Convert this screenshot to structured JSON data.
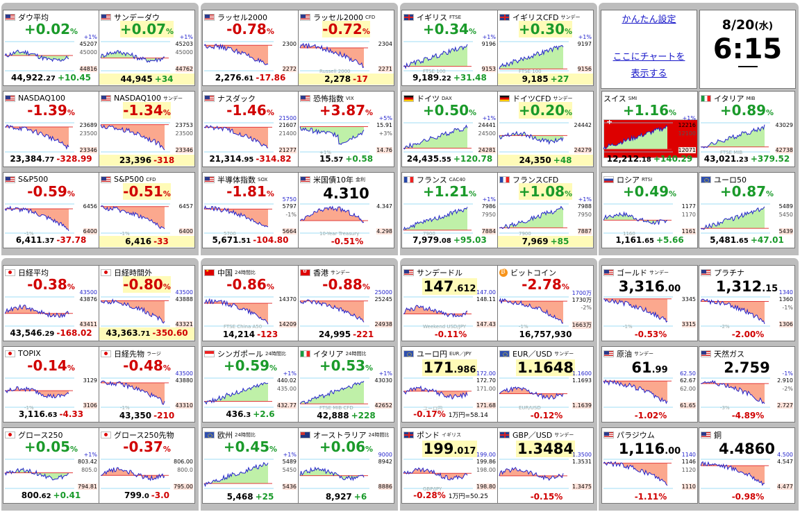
{
  "settings": {
    "easy_settings": "かんたん設定",
    "chart_link_1": "ここにチャートを",
    "chart_link_2": "表示する"
  },
  "clock": {
    "date": "8/20",
    "weekday": "(水)",
    "time": "6:15"
  },
  "colors": {
    "up": "#1a9a2a",
    "down": "#d00000",
    "fill_up": "#bff0a8",
    "fill_down": "#fba88e",
    "highlight": "#fffbb8",
    "line": "#2222cc"
  },
  "cards": [
    {
      "title": "ダウ平均",
      "flag": "us",
      "ch": "+0.02",
      "ch_unit": "%",
      "dir": "up",
      "hi": "45207",
      "lo": "44816",
      "p1": "+1%",
      "p2": "45000",
      "p3": "",
      "last": "44,922",
      "last_dec": ".27",
      "delta": "+10.45",
      "trend": "flat",
      "hl": false
    },
    {
      "title": "サンデーダウ",
      "flag": "us",
      "ch": "+0.07",
      "ch_unit": "%",
      "dir": "up",
      "hi": "45203",
      "lo": "44762",
      "p1": "+1%",
      "p2": "45000",
      "p3": "",
      "last": "44,945",
      "last_dec": "",
      "delta": "+34",
      "trend": "flat",
      "hl": true
    },
    {
      "title": "ラッセル2000",
      "flag": "us",
      "ch": "-0.78",
      "ch_unit": "%",
      "dir": "down",
      "hi": "2300",
      "lo": "2272",
      "p1": "",
      "p2": "",
      "p3": "",
      "last": "2,276",
      "last_dec": ".61",
      "delta": "-17.86",
      "trend": "down",
      "hl": false
    },
    {
      "title": "ラッセル2000",
      "sub": "CFD",
      "flag": "us",
      "ch": "-0.72",
      "ch_unit": "%",
      "dir": "down",
      "hi": "2304",
      "lo": "2271",
      "p1": "",
      "p2": "",
      "p3": "Russell 2000",
      "last": "2,278",
      "last_dec": "",
      "delta": "-17",
      "trend": "down",
      "hl": true
    },
    {
      "title": "イギリス",
      "sub": "FTSE",
      "flag": "gb",
      "ch": "+0.34",
      "ch_unit": "%",
      "dir": "up",
      "hi": "9196",
      "lo": "9153",
      "p1": "+1%",
      "p2": "",
      "p3": "FTSE 100",
      "last": "9,189",
      "last_dec": ".22",
      "delta": "+31.48",
      "trend": "up",
      "hl": false
    },
    {
      "title": "イギリスCFD",
      "sub": "サンデー",
      "flag": "gb",
      "ch": "+0.30",
      "ch_unit": "%",
      "dir": "up",
      "hi": "9197",
      "lo": "9156",
      "p1": "+1%",
      "p2": "",
      "p3": "FTSE 100",
      "last": "9,185",
      "last_dec": "",
      "delta": "+27",
      "trend": "up",
      "hl": true
    },
    {
      "title": "NASDAQ100",
      "flag": "us",
      "ch": "-1.39",
      "ch_unit": "%",
      "dir": "down",
      "hi": "23689",
      "lo": "23346",
      "p1": "",
      "p2": "23500",
      "p3": "",
      "last": "23,384",
      "last_dec": ".77",
      "delta": "-328.99",
      "trend": "down",
      "hl": false
    },
    {
      "title": "NASDAQ100",
      "sub": "サンデー",
      "flag": "us",
      "ch": "-1.34",
      "ch_unit": "%",
      "dir": "down",
      "hi": "23753",
      "lo": "23346",
      "p1": "",
      "p2": "23500",
      "p3": "",
      "last": "23,396",
      "last_dec": "",
      "delta": "-318",
      "trend": "down",
      "hl": true
    },
    {
      "title": "ナスダック",
      "flag": "us",
      "ch": "-1.46",
      "ch_unit": "%",
      "dir": "down",
      "hi": "21607",
      "lo": "21277",
      "p1": "21500",
      "p2": "21400",
      "p3": "",
      "last": "21,314",
      "last_dec": ".95",
      "delta": "-314.82",
      "trend": "down",
      "hl": false
    },
    {
      "title": "恐怖指数",
      "sub": "VIX",
      "flag": "us",
      "ch": "+3.87",
      "ch_unit": "%",
      "dir": "up",
      "chcolor": "down",
      "hi": "15.91",
      "lo": "14.76",
      "p1": "+5%",
      "p2": "+3%",
      "p3": "+1%",
      "last": "15",
      "last_dec": ".57",
      "delta": "+0.58",
      "trend": "vix",
      "hl": false
    },
    {
      "title": "ドイツ",
      "sub": "DAX",
      "flag": "de",
      "ch": "+0.50",
      "ch_unit": "%",
      "dir": "up",
      "hi": "24441",
      "lo": "24281",
      "p1": "+1%",
      "p2": "24500",
      "p3": "",
      "last": "24,435",
      "last_dec": ".55",
      "delta": "+120.78",
      "trend": "up",
      "hl": false
    },
    {
      "title": "ドイツCFD",
      "sub": "サンデー",
      "flag": "de",
      "ch": "+0.20",
      "ch_unit": "%",
      "dir": "up",
      "hi": "24442",
      "lo": "24279",
      "p1": "",
      "p2": "",
      "p3": "",
      "last": "24,350",
      "last_dec": "",
      "delta": "+48",
      "trend": "flat",
      "hl": true
    },
    {
      "title": "S&P500",
      "flag": "us",
      "ch": "-0.59",
      "ch_unit": "%",
      "dir": "down",
      "hi": "6456",
      "lo": "6400",
      "p1": "",
      "p2": "",
      "p3": "-1%",
      "last": "6,411",
      "last_dec": ".37",
      "delta": "-37.78",
      "trend": "down",
      "hl": false
    },
    {
      "title": "S&P500",
      "sub": "CFD",
      "flag": "us",
      "ch": "-0.51",
      "ch_unit": "%",
      "dir": "down",
      "hi": "6457",
      "lo": "6400",
      "p1": "",
      "p2": "",
      "p3": "-1%",
      "last": "6,416",
      "last_dec": "",
      "delta": "-33",
      "trend": "down",
      "hl": true
    },
    {
      "title": "半導体指数",
      "sub": "SOX",
      "flag": "us",
      "ch": "-1.81",
      "ch_unit": "%",
      "dir": "down",
      "hi": "5797",
      "lo": "5664",
      "p1": "5750",
      "p2": "-1%",
      "p3": "5700",
      "last": "5,671",
      "last_dec": ".51",
      "delta": "-104.80",
      "trend": "down",
      "hl": false
    },
    {
      "title": "米国債10年",
      "sub": "金利",
      "flag": "us",
      "ch": "4.310",
      "ch_unit": "",
      "dir": "price",
      "hi": "4.347",
      "lo": "4.298",
      "p1": "",
      "p2": "",
      "p3": "10-Year Treasury",
      "last": "",
      "last_dec": "",
      "delta": "-0.51%",
      "trend": "bond",
      "hl": false
    },
    {
      "title": "フランス",
      "sub": "CAC40",
      "flag": "fr",
      "ch": "+1.21",
      "ch_unit": "%",
      "dir": "up",
      "hi": "7986",
      "lo": "7884",
      "p1": "+1%",
      "p2": "7950",
      "p3": "7900",
      "last": "7,979",
      "last_dec": ".08",
      "delta": "+95.03",
      "trend": "up",
      "hl": false
    },
    {
      "title": "フランスCFD",
      "flag": "fr",
      "ch": "+1.08",
      "ch_unit": "%",
      "dir": "up",
      "hi": "7988",
      "lo": "7887",
      "p1": "+1%",
      "p2": "7950",
      "p3": "7900",
      "last": "7,969",
      "last_dec": "",
      "delta": "+85",
      "trend": "up",
      "hl": true
    },
    {
      "title": "スイス",
      "sub": "SMI",
      "flag": "ch",
      "ch": "+1.16",
      "ch_unit": "%",
      "dir": "up",
      "hi": "12216",
      "lo": "12071",
      "p1": "+1%",
      "p2": "12100",
      "p3": "",
      "last": "12,212",
      "last_dec": ".18",
      "delta": "+140.29",
      "trend": "up",
      "hl": false
    },
    {
      "title": "イタリア",
      "sub": "MIB",
      "flag": "it",
      "ch": "+0.89",
      "ch_unit": "%",
      "dir": "up",
      "hi": "43029",
      "lo": "42738",
      "p1": "",
      "p2": "",
      "p3": "FTSE MIB",
      "last": "43,021",
      "last_dec": ".23",
      "delta": "+379.52",
      "trend": "up",
      "hl": false
    },
    {
      "title": "ロシア",
      "sub": "RTSI",
      "flag": "ru",
      "ch": "+0.49",
      "ch_unit": "%",
      "dir": "up",
      "hi": "1177",
      "lo": "1161",
      "p1": "",
      "p2": "1170",
      "p3": "1160",
      "last": "1,161",
      "last_dec": ".65",
      "delta": "+5.66",
      "trend": "flat",
      "hl": false
    },
    {
      "title": "ユーロ50",
      "flag": "eu",
      "ch": "+0.87",
      "ch_unit": "%",
      "dir": "up",
      "hi": "5489",
      "lo": "5439",
      "p1": "",
      "p2": "5450",
      "p3": "",
      "last": "5,481",
      "last_dec": ".65",
      "delta": "+47.01",
      "trend": "up",
      "hl": false
    },
    {
      "title": "日経平均",
      "flag": "jp",
      "ch": "-0.38",
      "ch_unit": "%",
      "dir": "down",
      "hi": "43876",
      "lo": "43411",
      "p1": "43500",
      "p2": "",
      "p3": "",
      "last": "43,546",
      "last_dec": ".29",
      "delta": "-168.02",
      "trend": "flat",
      "hl": false
    },
    {
      "title": "日経時間外",
      "flag": "jp",
      "ch": "-0.80",
      "ch_unit": "%",
      "dir": "down",
      "hi": "43888",
      "lo": "43321",
      "p1": "43500",
      "p2": "",
      "p3": "",
      "last": "43,363",
      "last_dec": ".71",
      "delta": "-350.60",
      "trend": "down",
      "hl": true
    },
    {
      "title": "中国",
      "sub": "24時間比",
      "flag": "cn",
      "ch": "-0.86",
      "ch_unit": "%",
      "dir": "down",
      "hi": "14370",
      "lo": "14209",
      "p1": "",
      "p2": "",
      "p3": "FTSE China A50",
      "last": "14,214",
      "last_dec": "",
      "delta": "-123",
      "trend": "down",
      "hl": false
    },
    {
      "title": "香港",
      "sub": "サンデー",
      "flag": "hk",
      "ch": "-0.88",
      "ch_unit": "%",
      "dir": "down",
      "hi": "25245",
      "lo": "24938",
      "p1": "25000",
      "p2": "",
      "p3": "",
      "last": "24,995",
      "last_dec": "",
      "delta": "-221",
      "trend": "down",
      "hl": false
    },
    {
      "title": "サンデードル",
      "flag": "us",
      "ch": "147",
      "ch_dec": ".612",
      "ch_unit": "",
      "dir": "price",
      "hi": "148.11",
      "lo": "147.43",
      "p1": "147.00",
      "p2": "",
      "p3": "Weekend USD/JPY",
      "last": "",
      "last_dec": "",
      "delta": "-0.11%",
      "trend": "flat",
      "hl": false,
      "bg": true
    },
    {
      "title": "ビットコイン",
      "flag": "btc",
      "ch": "-2.78",
      "ch_unit": "%",
      "dir": "down",
      "hi": "1730万",
      "lo": "1663万",
      "p1": "1700万",
      "p2": "-2%",
      "p3": "-1%",
      "last": "16,757,930",
      "last_dec": "",
      "delta": "",
      "trend": "down",
      "hl": false
    },
    {
      "title": "ゴールド",
      "sub": "サンデー",
      "flag": "us",
      "ch": "3,316",
      "ch_dec": ".00",
      "ch_unit": "",
      "dir": "price",
      "hi": "3345",
      "lo": "3315",
      "p1": "",
      "p2": "",
      "p3": "-1%",
      "last": "",
      "last_dec": "",
      "delta": "-0.53%",
      "trend": "down",
      "hl": false
    },
    {
      "title": "プラチナ",
      "flag": "us",
      "ch": "1,312",
      "ch_dec": ".15",
      "ch_unit": "",
      "dir": "price",
      "hi": "1360",
      "lo": "1306",
      "p1": "1340",
      "p2": "-1%",
      "p3": "-2%",
      "last": "",
      "last_dec": "",
      "delta": "-2.00%",
      "trend": "down",
      "hl": false
    },
    {
      "title": "TOPIX",
      "flag": "jp",
      "ch": "-0.14",
      "ch_unit": "%",
      "dir": "down",
      "hi": "3129",
      "lo": "3106",
      "p1": "",
      "p2": "",
      "p3": "-1%",
      "last": "3,116",
      "last_dec": ".63",
      "delta": "-4.33",
      "trend": "flat",
      "hl": false
    },
    {
      "title": "日経先物",
      "sub": "ラージ",
      "flag": "jp",
      "ch": "-0.48",
      "ch_unit": "%",
      "dir": "down",
      "hi": "43880",
      "lo": "43310",
      "p1": "43500",
      "p2": "",
      "p3": "-1%",
      "last": "43,350",
      "last_dec": "",
      "delta": "-210",
      "trend": "down",
      "hl": false
    },
    {
      "title": "シンガポール",
      "sub": "24時間比",
      "flag": "sg",
      "ch": "+0.59",
      "ch_unit": "%",
      "dir": "up",
      "hi": "440.02",
      "lo": "432.77",
      "p1": "+1%",
      "p2": "435.00",
      "p3": "",
      "last": "436",
      "last_dec": ".3",
      "delta": "+2.6",
      "trend": "up",
      "hl": false
    },
    {
      "title": "イタリア",
      "sub": "24時間比",
      "flag": "it",
      "ch": "+0.53",
      "ch_unit": "%",
      "dir": "up",
      "hi": "43030",
      "lo": "42652",
      "p1": "+1%",
      "p2": "",
      "p3": "FTSE MIB CFD",
      "last": "42,888",
      "last_dec": "",
      "delta": "+228",
      "trend": "up",
      "hl": false
    },
    {
      "title": "ユーロ円",
      "sub": "EUR／JPY",
      "flag": "eu",
      "ch": "171",
      "ch_dec": ".986",
      "ch_unit": "",
      "dir": "price",
      "hi": "172.70",
      "lo": "171.68",
      "p1": "172.00",
      "p2": "171.00",
      "p3": "ユーロ円",
      "last": "",
      "last_dec": "",
      "delta": "-0.17%",
      "delta2": "1万円=58.14",
      "trend": "flat",
      "hl": false,
      "bg": true
    },
    {
      "title": "EUR／USD",
      "sub": "サンデー",
      "flag": "eu",
      "ch": "1.1648",
      "ch_unit": "",
      "dir": "price",
      "hi": "1.1693",
      "lo": "1.1639",
      "p1": "1.1600",
      "p2": "",
      "p3": "EUR/USD",
      "last": "",
      "last_dec": "",
      "delta": "-0.12%",
      "trend": "flat",
      "hl": false,
      "bg": true
    },
    {
      "title": "原油",
      "sub": "サンデー",
      "flag": "us",
      "ch": "61",
      "ch_dec": ".99",
      "ch_unit": "",
      "dir": "price",
      "hi": "62.67",
      "lo": "61.65",
      "p1": "62.50",
      "p2": "62.00",
      "p3": "",
      "last": "",
      "last_dec": "",
      "delta": "-1.02%",
      "trend": "down",
      "hl": false
    },
    {
      "title": "天然ガス",
      "flag": "us",
      "ch": "2.759",
      "ch_unit": "",
      "dir": "price",
      "hi": "2.910",
      "lo": "2.727",
      "p1": "-1%",
      "p2": "-2%",
      "p3": "-3%",
      "last": "",
      "last_dec": "",
      "delta": "-4.89%",
      "trend": "down",
      "hl": false
    },
    {
      "title": "グロース250",
      "flag": "jp",
      "ch": "+0.05",
      "ch_unit": "%",
      "dir": "up",
      "hi": "803.42",
      "lo": "794.81",
      "p1": "+1%",
      "p2": "805.0",
      "p3": "",
      "last": "800",
      "last_dec": ".62",
      "delta": "+0.41",
      "trend": "flat",
      "hl": false
    },
    {
      "title": "グロース250先物",
      "flag": "jp",
      "ch": "-0.37",
      "ch_unit": "%",
      "dir": "down",
      "hi": "806.00",
      "lo": "795.00",
      "p1": "",
      "p2": "800.0",
      "p3": "",
      "last": "799",
      "last_dec": ".0",
      "delta": "-3.0",
      "trend": "flat",
      "hl": false
    },
    {
      "title": "欧州",
      "sub": "24時間比",
      "flag": "eu",
      "ch": "+0.45",
      "ch_unit": "%",
      "dir": "up",
      "hi": "5489",
      "lo": "5436",
      "p1": "+1%",
      "p2": "5450",
      "p3": "",
      "last": "5,468",
      "last_dec": "",
      "delta": "+25",
      "trend": "up",
      "hl": false
    },
    {
      "title": "オーストラリア",
      "sub": "24時間比",
      "flag": "au",
      "ch": "+0.06",
      "ch_unit": "%",
      "dir": "up",
      "hi": "8942",
      "lo": "8886",
      "p1": "9000",
      "p2": "",
      "p3": "",
      "last": "8,927",
      "last_dec": "",
      "delta": "+6",
      "trend": "flat",
      "hl": false
    },
    {
      "title": "ポンド",
      "sub": "イギリス",
      "flag": "gb",
      "ch": "199",
      "ch_dec": ".017",
      "ch_unit": "",
      "dir": "price",
      "hi": "199.86",
      "lo": "198.80",
      "p1": "199.00",
      "p2": "198.00",
      "p3": "GBP/JPY",
      "last": "",
      "last_dec": "",
      "delta": "-0.28%",
      "delta2": "1万円=50.25",
      "trend": "flat",
      "hl": false,
      "bg": true
    },
    {
      "title": "GBP／USD",
      "sub": "サンデー",
      "flag": "gb",
      "ch": "1.3484",
      "ch_unit": "",
      "dir": "price",
      "hi": "1.3531",
      "lo": "1.3475",
      "p1": "1.3500",
      "p2": "",
      "p3": "",
      "last": "",
      "last_dec": "",
      "delta": "-0.15%",
      "trend": "flat",
      "hl": false,
      "bg": true
    },
    {
      "title": "パラジウム",
      "flag": "us",
      "ch": "1,116",
      "ch_dec": ".00",
      "ch_unit": "",
      "dir": "price",
      "hi": "1146",
      "lo": "1110",
      "p1": "1140",
      "p2": "1120",
      "p3": "",
      "last": "",
      "last_dec": "",
      "delta": "-1.11%",
      "trend": "down",
      "hl": false
    },
    {
      "title": "銅",
      "flag": "us",
      "ch": "4.4860",
      "ch_unit": "",
      "dir": "price",
      "hi": "4.547",
      "lo": "4.477",
      "p1": "4.500",
      "p2": "",
      "p3": "",
      "last": "",
      "last_dec": "",
      "delta": "-0.98%",
      "trend": "down",
      "hl": false
    }
  ]
}
